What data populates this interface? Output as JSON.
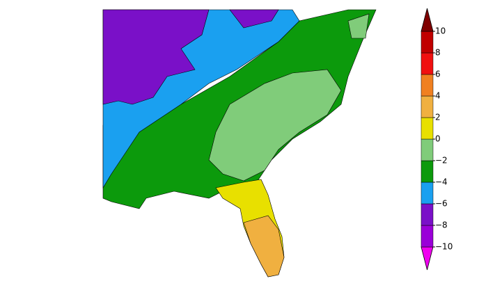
{
  "colorbar": {
    "ticks": [
      {
        "value": 10,
        "label": "10"
      },
      {
        "value": 8,
        "label": "8"
      },
      {
        "value": 6,
        "label": "6"
      },
      {
        "value": 4,
        "label": "4"
      },
      {
        "value": 2,
        "label": "2"
      },
      {
        "value": 0,
        "label": "0"
      },
      {
        "value": -2,
        "label": "−2"
      },
      {
        "value": -4,
        "label": "−4"
      },
      {
        "value": -6,
        "label": "−6"
      },
      {
        "value": -8,
        "label": "−8"
      },
      {
        "value": -10,
        "label": "−10"
      }
    ],
    "colors": [
      "#f000f0",
      "#9a00d8",
      "#7a10c8",
      "#1aa0f0",
      "#0c9a0c",
      "#80cc7a",
      "#e8e000",
      "#f0b040",
      "#f08020",
      "#f01010",
      "#c00000",
      "#800000"
    ]
  }
}
